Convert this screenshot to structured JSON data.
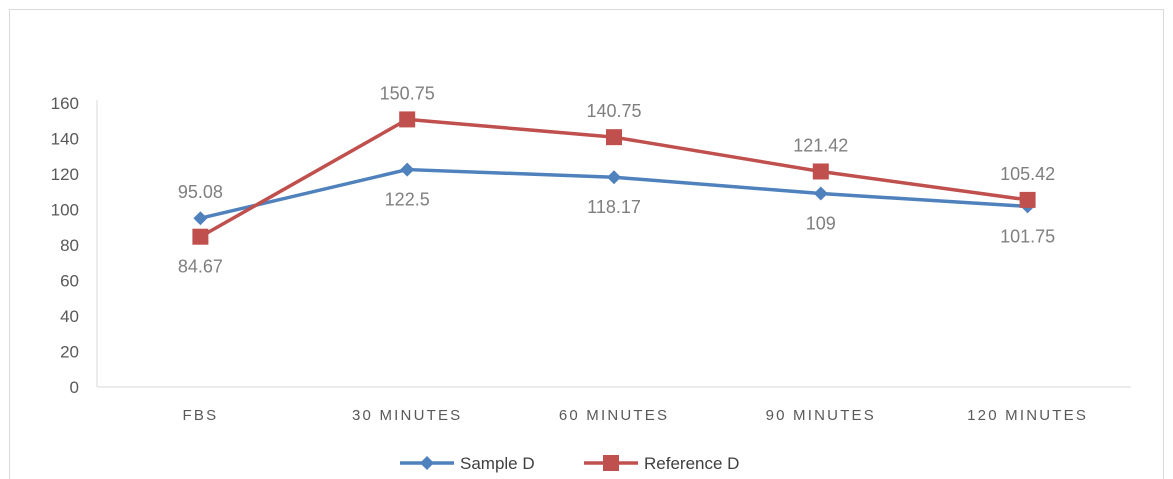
{
  "chart_data": {
    "type": "line",
    "title": "",
    "xlabel": "",
    "ylabel": "",
    "categories": [
      "FBS",
      "30 MINUTES",
      "60 MINUTES",
      "90 MINUTES",
      "120 MINUTES"
    ],
    "ylim": [
      0,
      160
    ],
    "yticks": [
      0,
      20,
      40,
      60,
      80,
      100,
      120,
      140,
      160
    ],
    "grid": false,
    "legend_position": "bottom",
    "series": [
      {
        "name": "Sample D",
        "values": [
          95.08,
          122.5,
          118.17,
          109,
          101.75
        ],
        "labels": [
          "95.08",
          "122.5",
          "118.17",
          "109",
          "101.75"
        ],
        "color": "#4f81bd",
        "marker": "diamond"
      },
      {
        "name": "Reference D",
        "values": [
          84.67,
          150.75,
          140.75,
          121.42,
          105.42
        ],
        "labels": [
          "84.67",
          "150.75",
          "140.75",
          "121.42",
          "105.42"
        ],
        "color": "#c0504d",
        "marker": "square"
      }
    ]
  }
}
